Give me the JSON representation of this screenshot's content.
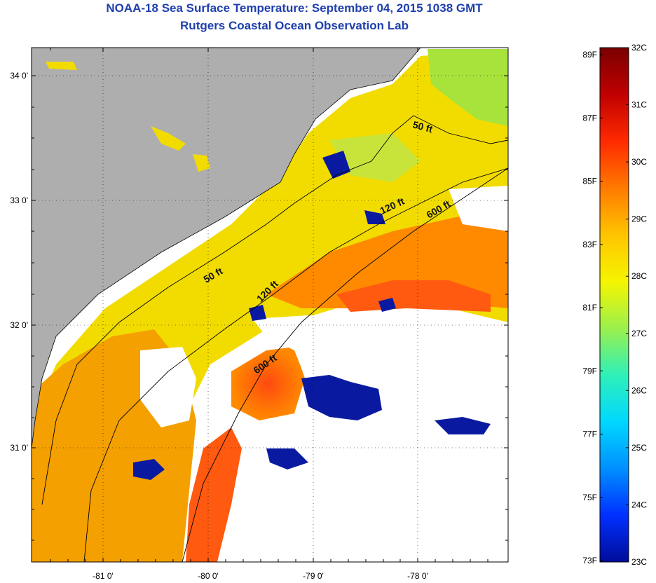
{
  "title_line1": "NOAA-18 Sea Surface Temperature:  September 04, 2015 1038 GMT",
  "title_line2": "Rutgers Coastal Ocean Observation Lab",
  "map": {
    "lat_labels": [
      "34 0'",
      "33 0'",
      "32 0'",
      "31 0'"
    ],
    "lon_labels": [
      "-81 0'",
      "-80 0'",
      "-79 0'",
      "-78 0'"
    ],
    "contour_labels": [
      "50 ft",
      "120 ft",
      "600 ft",
      "50 ft",
      "120 ft",
      "600 ft"
    ]
  },
  "colorbar": {
    "fahrenheit": [
      "89F",
      "87F",
      "85F",
      "83F",
      "81F",
      "79F",
      "77F",
      "75F",
      "73F"
    ],
    "celsius": [
      "32C",
      "31C",
      "30C",
      "29C",
      "28C",
      "27C",
      "26C",
      "25C",
      "24C",
      "23C"
    ],
    "colors": [
      "#7a0000",
      "#c00000",
      "#ff2a00",
      "#ff7a00",
      "#ffc400",
      "#f5f500",
      "#9cf04c",
      "#2ff0b8",
      "#00d8ff",
      "#0090ff",
      "#0030ff",
      "#000c9a"
    ]
  }
}
